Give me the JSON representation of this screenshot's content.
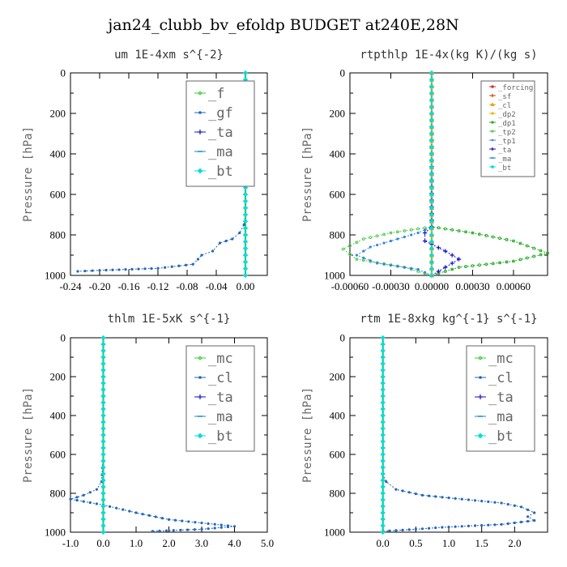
{
  "figure": {
    "title": "jan24_clubb_bv_efoldp  BUDGET at240E,28N"
  },
  "chart_data": [
    {
      "type": "line",
      "title": "um    1E-4xm  s^{-2}",
      "ylabel": "Pressure [hPa]",
      "xlim": [
        -0.24,
        0.03
      ],
      "ylim": [
        1000,
        0
      ],
      "xticks": [
        -0.24,
        -0.2,
        -0.16,
        -0.12,
        -0.08,
        -0.04,
        0.0
      ],
      "xtick_labels": [
        "-0.24",
        "-0.20",
        "-0.16",
        "-0.12",
        "-0.08",
        "-0.04",
        "0.00"
      ],
      "yticks": [
        0,
        200,
        400,
        600,
        800,
        1000
      ],
      "legend_position": "top-right",
      "legend_size": "large",
      "series": [
        {
          "name": "_f",
          "color": "#33cc33",
          "marker": "circle",
          "points": [
            [
              0.0,
              0
            ],
            [
              0.0,
              100
            ],
            [
              0.0,
              200
            ],
            [
              0.0,
              300
            ],
            [
              0.0,
              400
            ],
            [
              0.0,
              500
            ],
            [
              0.0,
              600
            ],
            [
              0.0,
              700
            ],
            [
              0.0,
              800
            ],
            [
              0.0,
              900
            ],
            [
              0.0,
              1000
            ]
          ]
        },
        {
          "name": "_gf",
          "color": "#2266bb",
          "marker": "dot",
          "points": [
            [
              0.0,
              0
            ],
            [
              0.0,
              200
            ],
            [
              0.0,
              400
            ],
            [
              0.0,
              600
            ],
            [
              0.0,
              700
            ],
            [
              -0.002,
              750
            ],
            [
              -0.008,
              790
            ],
            [
              -0.018,
              820
            ],
            [
              -0.035,
              840
            ],
            [
              -0.045,
              880
            ],
            [
              -0.06,
              900
            ],
            [
              -0.065,
              920
            ],
            [
              -0.072,
              945
            ],
            [
              -0.12,
              965
            ],
            [
              -0.2,
              975
            ],
            [
              -0.23,
              980
            ]
          ]
        },
        {
          "name": "_ta",
          "color": "#1111cc",
          "marker": "plus",
          "points": [
            [
              0.0,
              0
            ],
            [
              0.0,
              500
            ],
            [
              0.0,
              800
            ],
            [
              0.0,
              1000
            ]
          ]
        },
        {
          "name": "_ma",
          "color": "#1188cc",
          "marker": "dash",
          "points": [
            [
              0.0,
              0
            ],
            [
              0.0,
              500
            ],
            [
              0.0,
              1000
            ]
          ]
        },
        {
          "name": "_bt",
          "color": "#00dddd",
          "marker": "diamond",
          "points": [
            [
              0.0,
              0
            ],
            [
              0.0,
              500
            ],
            [
              0.0,
              1000
            ]
          ]
        }
      ]
    },
    {
      "type": "line",
      "title": "rtpthlp   1E-4x(kg K)/(kg s)",
      "ylabel": "Pressure [hPa]",
      "xlim": [
        -0.0006,
        0.00085
      ],
      "ylim": [
        1000,
        0
      ],
      "xticks": [
        -0.0006,
        -0.0003,
        0.0,
        0.0003,
        0.0006
      ],
      "xtick_labels": [
        "-0.00060",
        "-0.00030",
        "0.00000",
        "0.00030",
        "0.00060"
      ],
      "yticks": [
        0,
        200,
        400,
        600,
        800,
        1000
      ],
      "legend_position": "top-right",
      "legend_size": "small",
      "series": [
        {
          "name": "_forcing",
          "color": "#cc2222",
          "marker": "circle",
          "points": [
            [
              0.0,
              0
            ],
            [
              0.0,
              200
            ],
            [
              0.0,
              400
            ],
            [
              0.0,
              600
            ],
            [
              0.0,
              800
            ],
            [
              0.0,
              1000
            ]
          ]
        },
        {
          "name": "_sf",
          "color": "#dd4400",
          "marker": "plus",
          "points": [
            [
              0.0,
              0
            ],
            [
              0.0,
              500
            ],
            [
              0.0,
              1000
            ]
          ]
        },
        {
          "name": "_cl",
          "color": "#ee9900",
          "marker": "triangle",
          "points": [
            [
              0.0,
              0
            ],
            [
              0.0,
              500
            ],
            [
              0.0,
              1000
            ]
          ]
        },
        {
          "name": "_dp2",
          "color": "#ddbb00",
          "marker": "circle",
          "points": [
            [
              0.0,
              0
            ],
            [
              0.0,
              500
            ],
            [
              0.0,
              1000
            ]
          ]
        },
        {
          "name": "_dp1",
          "color": "#22aa22",
          "marker": "circle",
          "points": [
            [
              0.0,
              0
            ],
            [
              0.0,
              700
            ],
            [
              0.0,
              760
            ],
            [
              0.0003,
              790
            ],
            [
              0.0006,
              830
            ],
            [
              0.00085,
              890
            ],
            [
              0.0006,
              930
            ],
            [
              0.0002,
              960
            ],
            [
              0.0,
              1000
            ]
          ]
        },
        {
          "name": "_tp2",
          "color": "#55cc55",
          "marker": "circle",
          "points": [
            [
              0.0,
              0
            ],
            [
              0.0,
              700
            ],
            [
              0.0,
              760
            ],
            [
              -0.0003,
              790
            ],
            [
              -0.0005,
              820
            ],
            [
              -0.00065,
              870
            ],
            [
              -0.00055,
              920
            ],
            [
              -0.0002,
              960
            ],
            [
              0.0,
              1000
            ]
          ]
        },
        {
          "name": "_tp1",
          "color": "#3388dd",
          "marker": "dot",
          "points": [
            [
              0.0,
              0
            ],
            [
              0.0,
              760
            ],
            [
              -0.0001,
              790
            ],
            [
              -0.00045,
              860
            ],
            [
              -0.00055,
              900
            ],
            [
              -0.0004,
              940
            ],
            [
              -0.0001,
              970
            ],
            [
              0.0,
              1000
            ]
          ]
        },
        {
          "name": "_ta",
          "color": "#1111cc",
          "marker": "plus",
          "points": [
            [
              0.0,
              0
            ],
            [
              0.0,
              760
            ],
            [
              -5e-05,
              790
            ],
            [
              -5e-05,
              830
            ],
            [
              0.0001,
              880
            ],
            [
              0.0002,
              920
            ],
            [
              0.0001,
              960
            ],
            [
              0.0,
              1000
            ]
          ]
        },
        {
          "name": "_ma",
          "color": "#1188cc",
          "marker": "dash",
          "points": [
            [
              0.0,
              0
            ],
            [
              0.0,
              500
            ],
            [
              0.0,
              1000
            ]
          ]
        },
        {
          "name": "_bt",
          "color": "#00dddd",
          "marker": "diamond",
          "points": [
            [
              0.0,
              0
            ],
            [
              0.0,
              500
            ],
            [
              0.0,
              1000
            ]
          ]
        }
      ]
    },
    {
      "type": "line",
      "title": "thlm   1E-5xK  s^{-1}",
      "ylabel": "Pressure [hPa]",
      "xlim": [
        -1.0,
        5.0
      ],
      "ylim": [
        1000,
        0
      ],
      "xticks": [
        -1.0,
        0.0,
        1.0,
        2.0,
        3.0,
        4.0,
        5.0
      ],
      "xtick_labels": [
        "-1.0",
        "0.0",
        "1.0",
        "2.0",
        "3.0",
        "4.0",
        "5.0"
      ],
      "yticks": [
        0,
        200,
        400,
        600,
        800,
        1000
      ],
      "legend_position": "top-right",
      "legend_size": "large",
      "series": [
        {
          "name": "_mc",
          "color": "#33cc33",
          "marker": "circle",
          "points": [
            [
              0.0,
              0
            ],
            [
              0.0,
              100
            ],
            [
              0.0,
              200
            ],
            [
              0.0,
              300
            ],
            [
              0.0,
              400
            ],
            [
              0.0,
              500
            ],
            [
              0.0,
              600
            ],
            [
              0.0,
              700
            ],
            [
              0.0,
              800
            ],
            [
              0.0,
              900
            ],
            [
              0.0,
              1000
            ]
          ]
        },
        {
          "name": "_cl",
          "color": "#2266bb",
          "marker": "dot",
          "points": [
            [
              0.0,
              0
            ],
            [
              0.0,
              400
            ],
            [
              0.0,
              600
            ],
            [
              -0.05,
              740
            ],
            [
              -0.2,
              780
            ],
            [
              -0.6,
              810
            ],
            [
              -1.0,
              830
            ],
            [
              0.0,
              860
            ],
            [
              1.0,
              900
            ],
            [
              2.0,
              935
            ],
            [
              4.0,
              970
            ],
            [
              3.0,
              985
            ],
            [
              1.5,
              995
            ]
          ]
        },
        {
          "name": "_ta",
          "color": "#1111cc",
          "marker": "plus",
          "points": [
            [
              0.0,
              0
            ],
            [
              0.0,
              500
            ],
            [
              0.0,
              1000
            ]
          ]
        },
        {
          "name": "_ma",
          "color": "#1188cc",
          "marker": "dash",
          "points": [
            [
              0.0,
              0
            ],
            [
              0.0,
              500
            ],
            [
              0.0,
              1000
            ]
          ]
        },
        {
          "name": "_bt",
          "color": "#00dddd",
          "marker": "diamond",
          "points": [
            [
              0.0,
              0
            ],
            [
              0.0,
              500
            ],
            [
              0.0,
              1000
            ]
          ]
        }
      ]
    },
    {
      "type": "line",
      "title": "rtm  1E-8xkg  kg^{-1} s^{-1}",
      "ylabel": "Pressure [hPa]",
      "xlim": [
        -0.5,
        2.5
      ],
      "ylim": [
        1000,
        0
      ],
      "xticks": [
        0.0,
        0.5,
        1.0,
        1.5,
        2.0
      ],
      "xtick_labels": [
        "0.0",
        "0.5",
        "1.0",
        "1.5",
        "2.0"
      ],
      "yticks": [
        0,
        200,
        400,
        600,
        800,
        1000
      ],
      "legend_position": "top-right",
      "legend_size": "large",
      "series": [
        {
          "name": "_mc",
          "color": "#33cc33",
          "marker": "circle",
          "points": [
            [
              0.0,
              0
            ],
            [
              0.0,
              100
            ],
            [
              0.0,
              200
            ],
            [
              0.0,
              300
            ],
            [
              0.0,
              400
            ],
            [
              0.0,
              500
            ],
            [
              0.0,
              600
            ],
            [
              0.0,
              700
            ],
            [
              0.0,
              800
            ],
            [
              0.0,
              900
            ],
            [
              0.0,
              1000
            ]
          ]
        },
        {
          "name": "_cl",
          "color": "#2266bb",
          "marker": "dot",
          "points": [
            [
              0.0,
              0
            ],
            [
              0.0,
              600
            ],
            [
              0.0,
              700
            ],
            [
              0.05,
              740
            ],
            [
              0.2,
              780
            ],
            [
              0.6,
              810
            ],
            [
              1.2,
              830
            ],
            [
              1.8,
              850
            ],
            [
              2.1,
              870
            ],
            [
              2.3,
              900
            ],
            [
              2.2,
              920
            ],
            [
              2.3,
              940
            ],
            [
              1.8,
              960
            ],
            [
              0.9,
              975
            ],
            [
              0.5,
              985
            ],
            [
              0.0,
              995
            ]
          ]
        },
        {
          "name": "_ta",
          "color": "#1111cc",
          "marker": "plus",
          "points": [
            [
              0.0,
              0
            ],
            [
              0.0,
              500
            ],
            [
              0.0,
              1000
            ]
          ]
        },
        {
          "name": "_ma",
          "color": "#1188cc",
          "marker": "dash",
          "points": [
            [
              0.0,
              0
            ],
            [
              0.0,
              500
            ],
            [
              0.0,
              1000
            ]
          ]
        },
        {
          "name": "_bt",
          "color": "#00dddd",
          "marker": "diamond",
          "points": [
            [
              0.0,
              0
            ],
            [
              0.0,
              500
            ],
            [
              0.0,
              1000
            ]
          ]
        }
      ]
    }
  ]
}
